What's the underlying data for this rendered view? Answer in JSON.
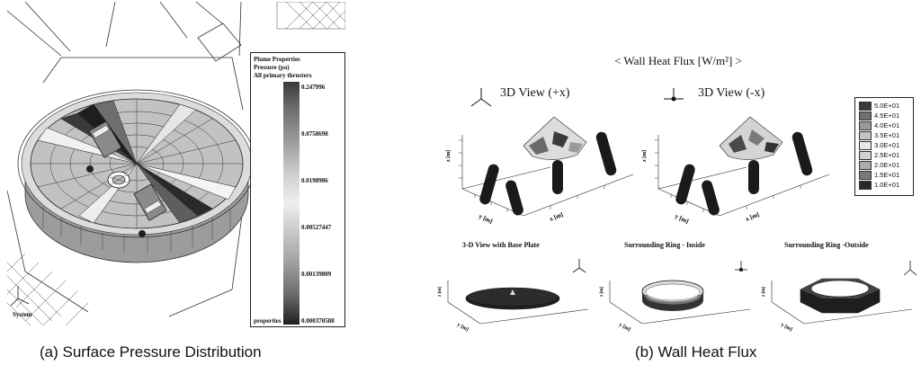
{
  "panel_a": {
    "legend": {
      "title": "Plume Properties",
      "quantity": "Pressure (pa)",
      "subset": "All primary thrusters",
      "ticks": [
        "0.247996",
        "0.0758698",
        "0.0198986",
        "0.00527447",
        "0.00139809",
        "0.000370588"
      ],
      "footer": "properties"
    },
    "axis_label": "System",
    "caption": "(a) Surface Pressure Distribution"
  },
  "panel_b": {
    "title": "< Wall Heat Flux [W/m²] >",
    "view_plus_x": "3D View (+x)",
    "view_minus_x": "3D View (-x)",
    "sub_base_plate": "3-D View with Base Plate",
    "sub_ring_inside": "Surrounding Ring - Inside",
    "sub_ring_outside": "Surrounding Ring -Outside",
    "legend": [
      {
        "label": "5.0E+01",
        "color": "#3c3c3c"
      },
      {
        "label": "4.5E+01",
        "color": "#707070"
      },
      {
        "label": "4.0E+01",
        "color": "#9a9a9a"
      },
      {
        "label": "3.5E+01",
        "color": "#c4c4c4"
      },
      {
        "label": "3.0E+01",
        "color": "#e8e8e8"
      },
      {
        "label": "2.5E+01",
        "color": "#d0d0d0"
      },
      {
        "label": "2.0E+01",
        "color": "#aaaaaa"
      },
      {
        "label": "1.5E+01",
        "color": "#7a7a7a"
      },
      {
        "label": "1.0E+01",
        "color": "#2a2a2a"
      }
    ],
    "axis_labels": {
      "x": "x [m]",
      "y": "y [m]",
      "z": "z [m]"
    },
    "caption": "(b) Wall Heat Flux"
  }
}
